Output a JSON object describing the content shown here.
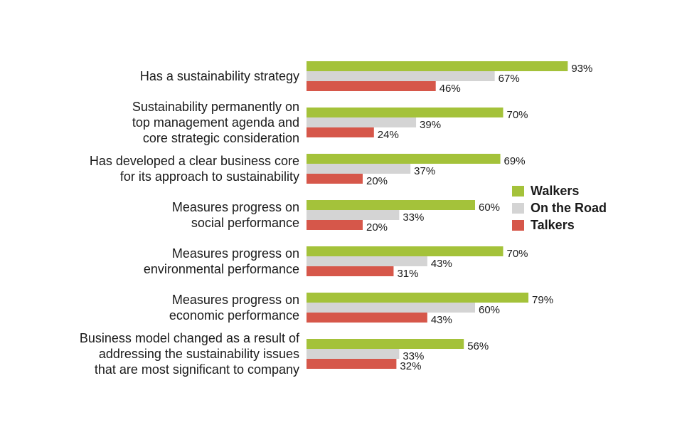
{
  "chart_data": {
    "type": "bar",
    "orientation": "horizontal",
    "categories": [
      [
        "Has a sustainability strategy"
      ],
      [
        "Sustainability permanently on",
        "top management agenda and",
        "core strategic consideration"
      ],
      [
        "Has developed a clear business core",
        "for its approach to sustainability"
      ],
      [
        "Measures progress on",
        "social performance"
      ],
      [
        "Measures progress on",
        "environmental performance"
      ],
      [
        "Measures progress on",
        "economic performance"
      ],
      [
        "Business model changed as a result of",
        "addressing the sustainability issues",
        "that are most significant to company"
      ]
    ],
    "series": [
      {
        "name": "Walkers",
        "color": "#a4c23a",
        "values": [
          93,
          70,
          69,
          60,
          70,
          79,
          56
        ],
        "labels": [
          "93%",
          "70%",
          "69%",
          "60%",
          "70%",
          "79%",
          "56%"
        ]
      },
      {
        "name": "On the Road",
        "color": "#d4d4d4",
        "values": [
          67,
          39,
          37,
          33,
          43,
          60,
          33
        ],
        "labels": [
          "67%",
          "39%",
          "37%",
          "33%",
          "43%",
          "60%",
          "33%"
        ]
      },
      {
        "name": "Talkers",
        "color": "#d6574a",
        "values": [
          46,
          24,
          20,
          20,
          31,
          43,
          32
        ],
        "labels": [
          "46%",
          "24%",
          "20%",
          "20%",
          "31%",
          "43%",
          "32%"
        ]
      }
    ],
    "xlim": [
      0,
      100
    ],
    "legend_position": "right",
    "grid": false
  }
}
